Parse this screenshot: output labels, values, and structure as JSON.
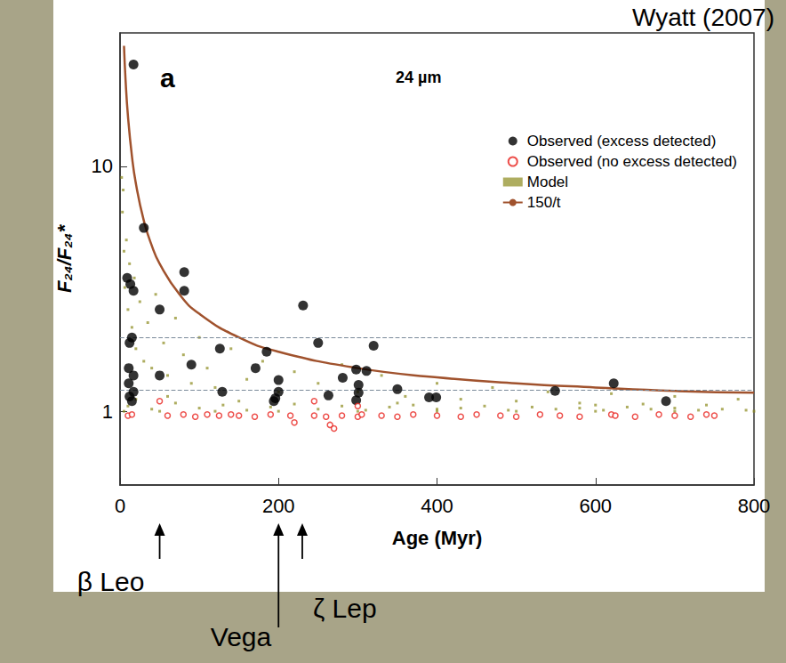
{
  "chart_data": {
    "type": "scatter",
    "title": "Wyatt (2007)",
    "panel": "a",
    "subtitle": "24 µm",
    "x_label": "Age (Myr)",
    "y_label": "F₂₄/F₂₄*",
    "xlim": [
      0,
      800
    ],
    "xticks": [
      0,
      200,
      400,
      600,
      800
    ],
    "ylim": [
      0.5,
      35
    ],
    "yticks": [
      1,
      10
    ],
    "log": "y",
    "grid": false,
    "legend": "top-right",
    "hlines": [
      2,
      1.22
    ],
    "series": [
      {
        "name": "Observed (excess detected)",
        "type": "scatter",
        "color": "#000000",
        "marker": "circle",
        "x": [
          17,
          30,
          9,
          13,
          17,
          15,
          12,
          50,
          81,
          81,
          11,
          17,
          50,
          90,
          11,
          17,
          12,
          15,
          126,
          129,
          171,
          185,
          200,
          200,
          196,
          194,
          231,
          250,
          281,
          263,
          298,
          301,
          301,
          298,
          320,
          311,
          350,
          390,
          399,
          549,
          623,
          689
        ],
        "values": [
          26,
          5.6,
          3.5,
          3.3,
          3.1,
          2.0,
          1.9,
          2.6,
          3.7,
          3.1,
          1.5,
          1.4,
          1.4,
          1.55,
          1.3,
          1.2,
          1.15,
          1.1,
          1.8,
          1.2,
          1.5,
          1.75,
          1.34,
          1.2,
          1.13,
          1.1,
          2.7,
          1.9,
          1.37,
          1.16,
          1.48,
          1.28,
          1.19,
          1.11,
          1.85,
          1.46,
          1.23,
          1.14,
          1.14,
          1.21,
          1.3,
          1.1
        ]
      },
      {
        "name": "Observed (no excess detected)",
        "type": "scatter",
        "color": "#e8231e",
        "marker": "open-circle",
        "x": [
          10,
          15,
          50,
          60,
          80,
          95,
          110,
          125,
          140,
          150,
          170,
          190,
          215,
          220,
          245,
          245,
          260,
          265,
          270,
          280,
          300,
          300,
          305,
          330,
          350,
          370,
          400,
          430,
          450,
          480,
          500,
          530,
          555,
          580,
          620,
          625,
          650,
          680,
          700,
          720,
          740,
          750
        ],
        "values": [
          0.96,
          0.97,
          1.1,
          0.96,
          0.97,
          0.95,
          0.97,
          0.96,
          0.97,
          0.96,
          0.95,
          0.97,
          0.96,
          0.9,
          1.1,
          0.96,
          0.95,
          0.88,
          0.85,
          0.96,
          1.05,
          0.95,
          0.97,
          0.96,
          0.95,
          0.97,
          0.96,
          0.95,
          0.97,
          0.96,
          0.95,
          0.97,
          0.96,
          0.95,
          0.97,
          0.96,
          0.95,
          0.97,
          0.96,
          0.95,
          0.97,
          0.96
        ]
      },
      {
        "name": "Model",
        "type": "scatter",
        "color": "#8c8a1c",
        "marker": "square",
        "x": [
          2,
          3,
          5,
          4,
          6,
          8,
          10,
          12,
          15,
          18,
          20,
          25,
          30,
          35,
          40,
          45,
          55,
          60,
          70,
          80,
          90,
          100,
          110,
          120,
          140,
          160,
          180,
          200,
          220,
          250,
          280,
          300,
          330,
          360,
          400,
          430,
          470,
          500,
          540,
          580,
          620,
          660,
          700,
          740,
          780,
          10,
          40,
          70,
          100,
          130,
          160,
          190,
          220,
          250,
          280,
          310,
          340,
          370,
          400,
          430,
          460,
          490,
          520,
          550,
          580,
          610,
          640,
          670,
          700,
          730,
          760,
          790,
          20,
          60,
          150,
          350,
          600,
          5,
          50,
          120,
          200,
          300,
          400,
          500,
          600,
          700,
          800
        ],
        "values": [
          9,
          6.5,
          4.5,
          8,
          3.2,
          5,
          2.6,
          4,
          2.2,
          3.5,
          1.8,
          2.8,
          1.6,
          2.3,
          1.5,
          3.0,
          1.9,
          1.4,
          2.4,
          1.7,
          1.3,
          2.0,
          1.5,
          1.25,
          1.8,
          1.35,
          1.6,
          1.2,
          1.45,
          1.3,
          1.55,
          1.2,
          1.4,
          1.15,
          1.3,
          1.12,
          1.25,
          1.1,
          1.2,
          1.08,
          1.18,
          1.07,
          1.15,
          1.06,
          1.12,
          1.05,
          1.02,
          1.08,
          1.03,
          1.06,
          1.01,
          1.04,
          1.07,
          1.02,
          1.05,
          1.01,
          1.04,
          1.06,
          1.02,
          1.03,
          1.05,
          1.01,
          1.04,
          1.02,
          1.03,
          1.01,
          1.04,
          1.02,
          1.03,
          1.01,
          1.02,
          1.01,
          1.12,
          1.15,
          1.1,
          1.08,
          1.06,
          1.0,
          1.0,
          1.0,
          1.0,
          1.0,
          1.0,
          1.0,
          1.0,
          1.0,
          1.0
        ]
      },
      {
        "name": "150/t",
        "type": "line",
        "color": "#a0522d",
        "line_style": "solid",
        "x": [
          5,
          7,
          10,
          15,
          20,
          30,
          40,
          50,
          75,
          100,
          150,
          200,
          300,
          400,
          500,
          600,
          700,
          800
        ],
        "values": [
          31,
          22.4,
          16,
          11,
          8.5,
          6,
          4.75,
          4,
          3,
          2.5,
          2,
          1.75,
          1.5,
          1.375,
          1.3,
          1.25,
          1.21,
          1.19
        ]
      }
    ],
    "annotations": [
      {
        "text": "β Leo",
        "x": 50
      },
      {
        "text": "Vega",
        "x": 200
      },
      {
        "text": "ζ Lep",
        "x": 230
      }
    ]
  }
}
